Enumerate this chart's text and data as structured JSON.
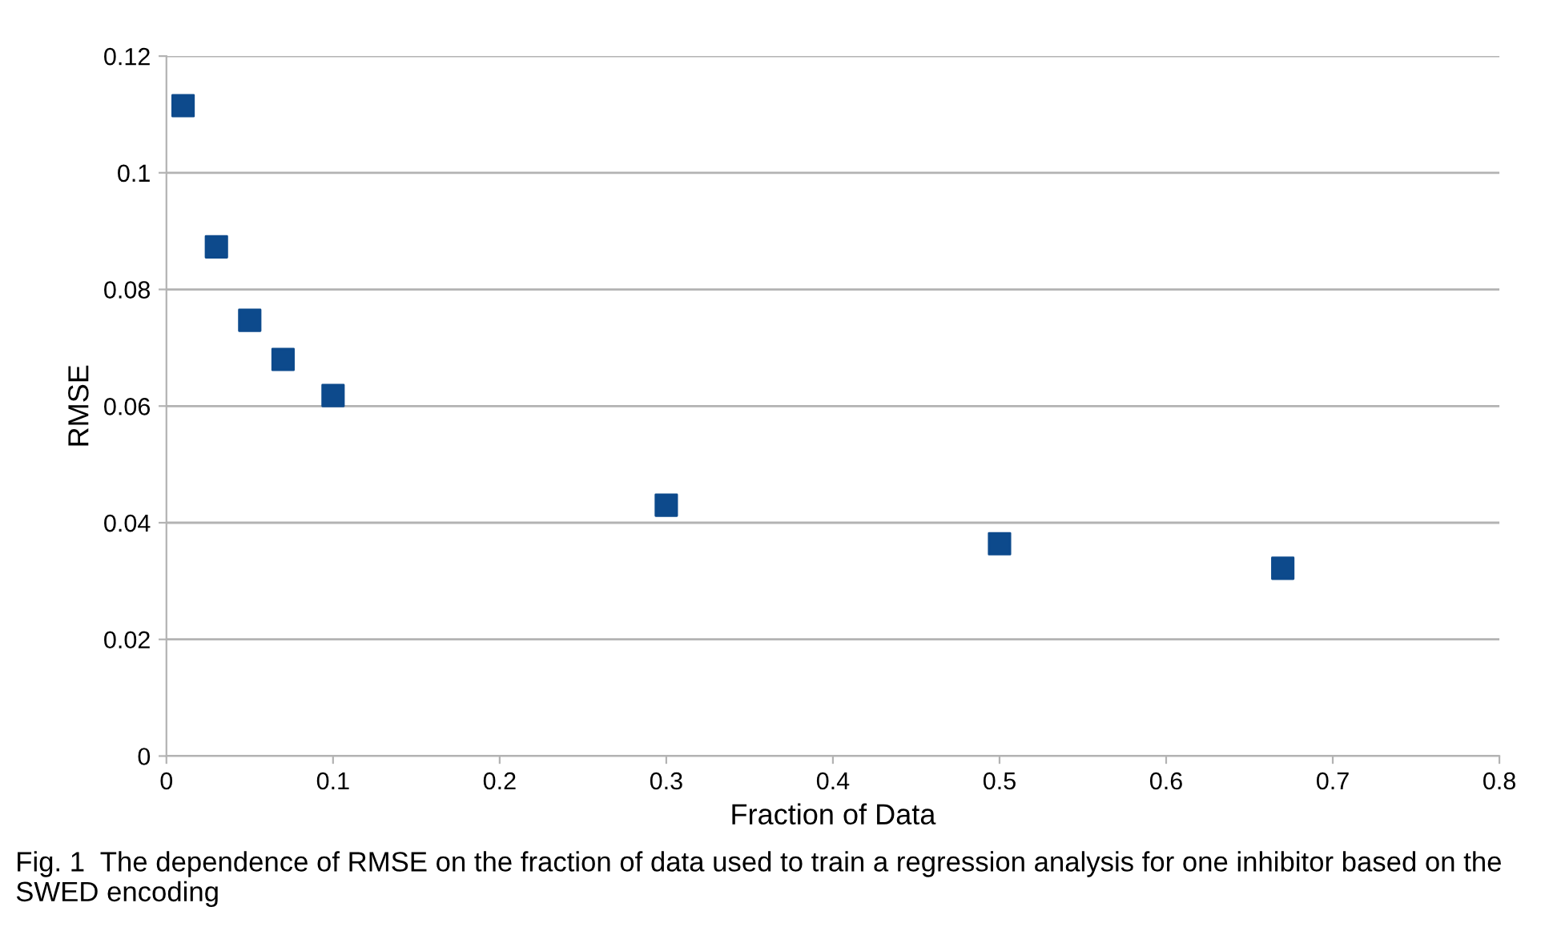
{
  "chart_data": {
    "type": "scatter",
    "xlabel": "Fraction of Data",
    "ylabel": "RMSE",
    "x": [
      0.01,
      0.03,
      0.05,
      0.07,
      0.1,
      0.3,
      0.5,
      0.67
    ],
    "series": [
      {
        "color": "#0d4a8c",
        "values": [
          0.1115,
          0.0873,
          0.0747,
          0.068,
          0.0618,
          0.043,
          0.0364,
          0.0322
        ]
      }
    ],
    "marker": "square",
    "xlim": [
      0,
      0.8
    ],
    "xticks": [
      0,
      0.1,
      0.2,
      0.3,
      0.4,
      0.5,
      0.6,
      0.7,
      0.8
    ],
    "ylim": [
      0,
      0.12
    ],
    "yticks": [
      0,
      0.02,
      0.04,
      0.06,
      0.08,
      0.1,
      0.12
    ],
    "grid": "y",
    "annotations": [
      "Fig. 1  The dependence of RMSE on the fraction of data used to train a regression analysis for one inhibitor based on the SWED encoding"
    ]
  }
}
